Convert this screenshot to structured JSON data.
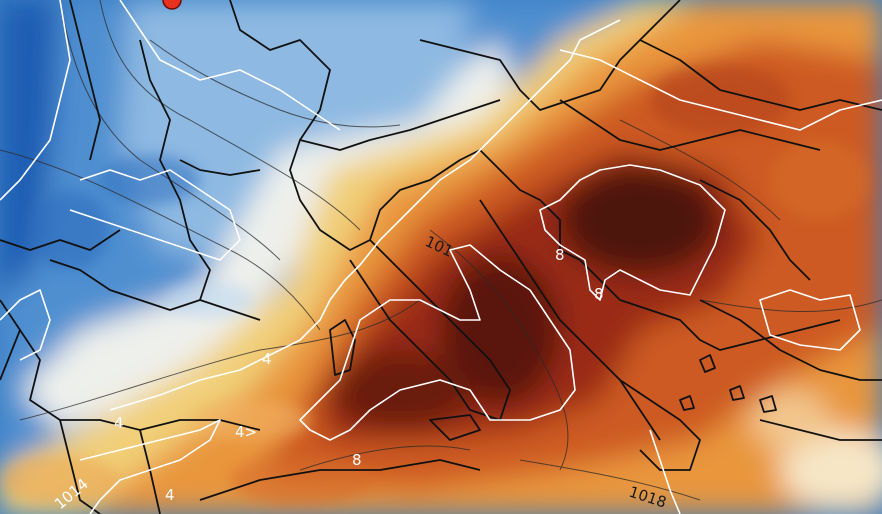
{
  "map": {
    "isotherm_labels": [
      {
        "id": "iso-8-balkans",
        "text": "8"
      },
      {
        "id": "iso-8-italy",
        "text": "8"
      },
      {
        "id": "iso-8-bosnia",
        "text": "8"
      },
      {
        "id": "iso-4-france",
        "text": "4"
      },
      {
        "id": "iso-4-spain-a",
        "text": "4"
      },
      {
        "id": "iso-4-spain-b",
        "text": "4>"
      },
      {
        "id": "iso-4-iberia",
        "text": "4"
      }
    ],
    "isobar_labels": [
      {
        "id": "isobar-1018",
        "text": "1018"
      },
      {
        "id": "isobar-1014",
        "text": "1014"
      },
      {
        "id": "isobar-101x",
        "text": "101"
      }
    ],
    "colors": {
      "cold_deep": "#1f5db3",
      "cold": "#4f8fd0",
      "cool": "#a9cbe8",
      "neutral": "#f2f0e6",
      "mild": "#f3d27a",
      "warm": "#e9963c",
      "hot": "#c9501e",
      "very_hot": "#8e2410",
      "extreme": "#4a0f08",
      "isotherm": "#ffffff",
      "border": "#111111",
      "marker": "#e8321e"
    }
  }
}
